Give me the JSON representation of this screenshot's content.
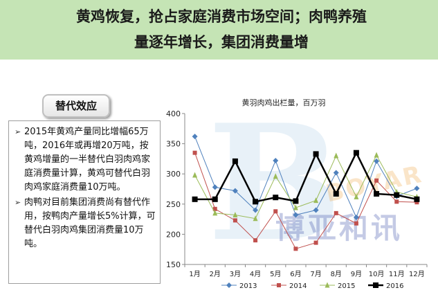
{
  "header": {
    "title_line1": "黄鸡恢复，抢占家庭消费市场空间；肉鸭养殖",
    "title_line2": "量逐年增长，集团消费量增"
  },
  "section": {
    "label": "替代效应"
  },
  "bullets": [
    "2015年黄鸡产量同比增幅65万吨，2016年或再增20万吨，按黄鸡增量的一半替代白羽肉鸡家庭消费量计算，黄鸡可替代白羽肉鸡家庭消费量10万吨。",
    "肉鸭对目前集团消费尚有替代作用，按鸭肉产量增长5%计算，可替代白羽肉鸡集团消费量10万吨。"
  ],
  "watermark": {
    "latin": "BOYAR",
    "cn": "博亚和讯"
  },
  "colors": {
    "header_bg": "#c5e4b5",
    "s2013": "#4f81bd",
    "s2014": "#c0504d",
    "s2015": "#9bbb59",
    "s2016": "#000000"
  },
  "chart_data": {
    "type": "line",
    "title": "黄羽肉鸡出栏量，百万羽",
    "categories": [
      "1月",
      "2月",
      "3月",
      "4月",
      "5月",
      "6月",
      "7月",
      "8月",
      "9月",
      "10月",
      "11月",
      "12月"
    ],
    "ylim": [
      150,
      400
    ],
    "yticks": [
      150,
      200,
      250,
      300,
      350,
      400
    ],
    "grid": false,
    "legend_position": "bottom",
    "series": [
      {
        "name": "2013",
        "values": [
          362,
          278,
          272,
          240,
          322,
          232,
          240,
          302,
          228,
          321,
          263,
          276
        ]
      },
      {
        "name": "2014",
        "values": [
          335,
          242,
          223,
          190,
          238,
          176,
          186,
          235,
          218,
          289,
          254,
          253
        ]
      },
      {
        "name": "2015",
        "values": [
          298,
          235,
          232,
          226,
          296,
          244,
          256,
          330,
          262,
          331,
          270,
          262
        ]
      },
      {
        "name": "2016",
        "values": [
          258,
          258,
          321,
          254,
          261,
          255,
          333,
          267,
          335,
          267,
          265,
          258
        ]
      }
    ]
  }
}
